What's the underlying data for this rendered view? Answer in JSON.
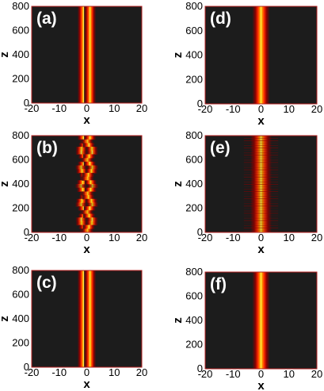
{
  "chart_data": [
    {
      "type": "heatmap",
      "panel": "(a)",
      "xlabel": "x",
      "ylabel": "z",
      "xlim": [
        -20,
        20
      ],
      "ylim": [
        0,
        800
      ],
      "xticks": [
        "-20",
        "-10",
        "0",
        "10",
        "20"
      ],
      "yticks": [
        "0",
        "200",
        "400",
        "600",
        "800"
      ],
      "pattern": "double-stripe",
      "stripes": [
        {
          "x": -1.2,
          "width": 0.9
        },
        {
          "x": 1.2,
          "width": 0.9
        }
      ],
      "intensity_colors": [
        "#1c1c1c",
        "#8b0000",
        "#ff2a00",
        "#ff8c00",
        "#ffd400",
        "#ffffcc"
      ]
    },
    {
      "type": "heatmap",
      "panel": "(b)",
      "xlabel": "x",
      "ylabel": "z",
      "xlim": [
        -20,
        20
      ],
      "ylim": [
        0,
        800
      ],
      "xticks": [
        "-20",
        "-10",
        "0",
        "10",
        "20"
      ],
      "yticks": [
        "0",
        "200",
        "400",
        "600",
        "800"
      ],
      "pattern": "oscillating-double",
      "stripes": [
        {
          "x": -1.2,
          "width": 0.9
        },
        {
          "x": 1.2,
          "width": 0.9
        }
      ],
      "intensity_colors": [
        "#1c1c1c",
        "#8b0000",
        "#ff2a00",
        "#ff8c00",
        "#ffd400",
        "#ffffcc"
      ]
    },
    {
      "type": "heatmap",
      "panel": "(c)",
      "xlabel": "x",
      "ylabel": "z",
      "xlim": [
        -20,
        20
      ],
      "ylim": [
        0,
        800
      ],
      "xticks": [
        "-20",
        "-10",
        "0",
        "10",
        "20"
      ],
      "yticks": [
        "0",
        "200",
        "400",
        "600",
        "800"
      ],
      "pattern": "double-stripe",
      "stripes": [
        {
          "x": -1.2,
          "width": 0.9
        },
        {
          "x": 1.2,
          "width": 0.9
        }
      ],
      "intensity_colors": [
        "#1c1c1c",
        "#8b0000",
        "#ff2a00",
        "#ff8c00",
        "#ffd400",
        "#ffffcc"
      ]
    },
    {
      "type": "heatmap",
      "panel": "(d)",
      "xlabel": "x",
      "ylabel": "z",
      "xlim": [
        -20,
        20
      ],
      "ylim": [
        0,
        800
      ],
      "xticks": [
        "-20",
        "-10",
        "0",
        "10",
        "20"
      ],
      "yticks": [
        "0",
        "200",
        "400",
        "600",
        "800"
      ],
      "pattern": "single-stripe",
      "stripes": [
        {
          "x": 0,
          "width": 1.3
        }
      ],
      "intensity_colors": [
        "#1c1c1c",
        "#8b0000",
        "#ff2a00",
        "#ff8c00",
        "#ffd400",
        "#ffffcc"
      ]
    },
    {
      "type": "heatmap",
      "panel": "(e)",
      "xlabel": "x",
      "ylabel": "z",
      "xlim": [
        -20,
        20
      ],
      "ylim": [
        0,
        800
      ],
      "xticks": [
        "-20",
        "-10",
        "0",
        "10",
        "20"
      ],
      "yticks": [
        "0",
        "200",
        "400",
        "600",
        "800"
      ],
      "pattern": "noisy-single",
      "stripes": [
        {
          "x": 0,
          "width": 1.6
        }
      ],
      "intensity_colors": [
        "#1c1c1c",
        "#8b0000",
        "#ff2a00",
        "#ff8c00",
        "#ffd400",
        "#ffffcc"
      ]
    },
    {
      "type": "heatmap",
      "panel": "(f)",
      "xlabel": "x",
      "ylabel": "z",
      "xlim": [
        -20,
        20
      ],
      "ylim": [
        0,
        800
      ],
      "xticks": [
        "-20",
        "-10",
        "0",
        "10",
        "20"
      ],
      "yticks": [
        "0",
        "200",
        "400",
        "600",
        "800"
      ],
      "pattern": "single-stripe",
      "stripes": [
        {
          "x": 0,
          "width": 1.3
        }
      ],
      "intensity_colors": [
        "#1c1c1c",
        "#8b0000",
        "#ff2a00",
        "#ff8c00",
        "#ffd400",
        "#ffffcc"
      ]
    }
  ]
}
